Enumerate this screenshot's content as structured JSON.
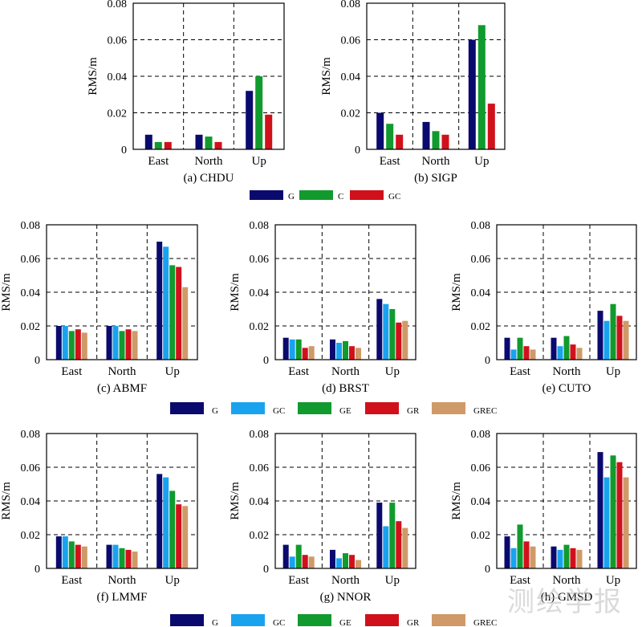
{
  "figure": {
    "watermark": "测绘学报",
    "legend_rows": [
      {
        "series": [
          {
            "name": "G",
            "color": "#0a0a6e"
          },
          {
            "name": "C",
            "color": "#119a2e"
          },
          {
            "name": "GC",
            "color": "#d0111b"
          }
        ]
      },
      {
        "series": [
          {
            "name": "G",
            "color": "#0a0a6e"
          },
          {
            "name": "GC",
            "color": "#19a3ef"
          },
          {
            "name": "GE",
            "color": "#119a2e"
          },
          {
            "name": "GR",
            "color": "#d0111b"
          },
          {
            "name": "GREC",
            "color": "#cf9a68"
          }
        ]
      },
      {
        "series": [
          {
            "name": "G",
            "color": "#0a0a6e"
          },
          {
            "name": "GC",
            "color": "#19a3ef"
          },
          {
            "name": "GE",
            "color": "#119a2e"
          },
          {
            "name": "GR",
            "color": "#d0111b"
          },
          {
            "name": "GREC",
            "color": "#cf9a68"
          }
        ]
      }
    ]
  },
  "chart_data": [
    {
      "type": "bar",
      "title": "(a) CHDU",
      "ylabel": "RMS/m",
      "xlabel": "",
      "categories": [
        "East",
        "North",
        "Up"
      ],
      "ylim": [
        0,
        0.08
      ],
      "yticks": [
        "0",
        "0.02",
        "0.04",
        "0.06",
        "0.08"
      ],
      "grid": true,
      "series": [
        {
          "name": "G",
          "color": "#0a0a6e",
          "values": [
            0.008,
            0.008,
            0.032
          ]
        },
        {
          "name": "C",
          "color": "#119a2e",
          "values": [
            0.004,
            0.007,
            0.04
          ]
        },
        {
          "name": "GC",
          "color": "#d0111b",
          "values": [
            0.004,
            0.004,
            0.019
          ]
        }
      ]
    },
    {
      "type": "bar",
      "title": "(b) SIGP",
      "ylabel": "RMS/m",
      "xlabel": "",
      "categories": [
        "East",
        "North",
        "Up"
      ],
      "ylim": [
        0,
        0.08
      ],
      "yticks": [
        "0",
        "0.02",
        "0.04",
        "0.06",
        "0.08"
      ],
      "grid": true,
      "series": [
        {
          "name": "G",
          "color": "#0a0a6e",
          "values": [
            0.02,
            0.015,
            0.06
          ]
        },
        {
          "name": "C",
          "color": "#119a2e",
          "values": [
            0.014,
            0.01,
            0.068
          ]
        },
        {
          "name": "GC",
          "color": "#d0111b",
          "values": [
            0.008,
            0.008,
            0.025
          ]
        }
      ]
    },
    {
      "type": "bar",
      "title": "(c) ABMF",
      "ylabel": "RMS/m",
      "xlabel": "",
      "categories": [
        "East",
        "North",
        "Up"
      ],
      "ylim": [
        0,
        0.08
      ],
      "yticks": [
        "0",
        "0.02",
        "0.04",
        "0.06",
        "0.08"
      ],
      "grid": true,
      "series": [
        {
          "name": "G",
          "color": "#0a0a6e",
          "values": [
            0.02,
            0.02,
            0.07
          ]
        },
        {
          "name": "GC",
          "color": "#19a3ef",
          "values": [
            0.02,
            0.02,
            0.067
          ]
        },
        {
          "name": "GE",
          "color": "#119a2e",
          "values": [
            0.017,
            0.017,
            0.056
          ]
        },
        {
          "name": "GR",
          "color": "#d0111b",
          "values": [
            0.018,
            0.018,
            0.055
          ]
        },
        {
          "name": "GREC",
          "color": "#cf9a68",
          "values": [
            0.016,
            0.017,
            0.043
          ]
        }
      ]
    },
    {
      "type": "bar",
      "title": "(d) BRST",
      "ylabel": "RMS/m",
      "xlabel": "",
      "categories": [
        "East",
        "North",
        "Up"
      ],
      "ylim": [
        0,
        0.08
      ],
      "yticks": [
        "0",
        "0.02",
        "0.04",
        "0.06",
        "0.08"
      ],
      "grid": true,
      "series": [
        {
          "name": "G",
          "color": "#0a0a6e",
          "values": [
            0.013,
            0.012,
            0.036
          ]
        },
        {
          "name": "GC",
          "color": "#19a3ef",
          "values": [
            0.012,
            0.01,
            0.033
          ]
        },
        {
          "name": "GE",
          "color": "#119a2e",
          "values": [
            0.012,
            0.011,
            0.03
          ]
        },
        {
          "name": "GR",
          "color": "#d0111b",
          "values": [
            0.007,
            0.008,
            0.022
          ]
        },
        {
          "name": "GREC",
          "color": "#cf9a68",
          "values": [
            0.008,
            0.007,
            0.023
          ]
        }
      ]
    },
    {
      "type": "bar",
      "title": "(e) CUTO",
      "ylabel": "RMS/m",
      "xlabel": "",
      "categories": [
        "East",
        "North",
        "Up"
      ],
      "ylim": [
        0,
        0.08
      ],
      "yticks": [
        "0",
        "0.02",
        "0.04",
        "0.06",
        "0.08"
      ],
      "grid": true,
      "series": [
        {
          "name": "G",
          "color": "#0a0a6e",
          "values": [
            0.013,
            0.013,
            0.029
          ]
        },
        {
          "name": "GC",
          "color": "#19a3ef",
          "values": [
            0.006,
            0.008,
            0.023
          ]
        },
        {
          "name": "GE",
          "color": "#119a2e",
          "values": [
            0.013,
            0.014,
            0.033
          ]
        },
        {
          "name": "GR",
          "color": "#d0111b",
          "values": [
            0.008,
            0.009,
            0.026
          ]
        },
        {
          "name": "GREC",
          "color": "#cf9a68",
          "values": [
            0.006,
            0.007,
            0.023
          ]
        }
      ]
    },
    {
      "type": "bar",
      "title": "(f) LMMF",
      "ylabel": "RMS/m",
      "xlabel": "",
      "categories": [
        "East",
        "North",
        "Up"
      ],
      "ylim": [
        0,
        0.08
      ],
      "yticks": [
        "0",
        "0.02",
        "0.04",
        "0.06",
        "0.08"
      ],
      "grid": true,
      "series": [
        {
          "name": "G",
          "color": "#0a0a6e",
          "values": [
            0.019,
            0.014,
            0.056
          ]
        },
        {
          "name": "GC",
          "color": "#19a3ef",
          "values": [
            0.019,
            0.014,
            0.054
          ]
        },
        {
          "name": "GE",
          "color": "#119a2e",
          "values": [
            0.016,
            0.012,
            0.046
          ]
        },
        {
          "name": "GR",
          "color": "#d0111b",
          "values": [
            0.014,
            0.011,
            0.038
          ]
        },
        {
          "name": "GREC",
          "color": "#cf9a68",
          "values": [
            0.013,
            0.01,
            0.037
          ]
        }
      ]
    },
    {
      "type": "bar",
      "title": "(g) NNOR",
      "ylabel": "RMS/m",
      "xlabel": "",
      "categories": [
        "East",
        "North",
        "Up"
      ],
      "ylim": [
        0,
        0.08
      ],
      "yticks": [
        "0",
        "0.02",
        "0.04",
        "0.06",
        "0.08"
      ],
      "grid": true,
      "series": [
        {
          "name": "G",
          "color": "#0a0a6e",
          "values": [
            0.014,
            0.011,
            0.039
          ]
        },
        {
          "name": "GC",
          "color": "#19a3ef",
          "values": [
            0.007,
            0.006,
            0.025
          ]
        },
        {
          "name": "GE",
          "color": "#119a2e",
          "values": [
            0.014,
            0.009,
            0.039
          ]
        },
        {
          "name": "GR",
          "color": "#d0111b",
          "values": [
            0.008,
            0.008,
            0.028
          ]
        },
        {
          "name": "GREC",
          "color": "#cf9a68",
          "values": [
            0.007,
            0.005,
            0.024
          ]
        }
      ]
    },
    {
      "type": "bar",
      "title": "(h) GMSD",
      "ylabel": "RMS/m",
      "xlabel": "",
      "categories": [
        "East",
        "North",
        "Up"
      ],
      "ylim": [
        0,
        0.08
      ],
      "yticks": [
        "0",
        "0.02",
        "0.04",
        "0.06",
        "0.08"
      ],
      "grid": true,
      "series": [
        {
          "name": "G",
          "color": "#0a0a6e",
          "values": [
            0.019,
            0.013,
            0.069
          ]
        },
        {
          "name": "GC",
          "color": "#19a3ef",
          "values": [
            0.012,
            0.011,
            0.054
          ]
        },
        {
          "name": "GE",
          "color": "#119a2e",
          "values": [
            0.026,
            0.014,
            0.067
          ]
        },
        {
          "name": "GR",
          "color": "#d0111b",
          "values": [
            0.016,
            0.012,
            0.063
          ]
        },
        {
          "name": "GREC",
          "color": "#cf9a68",
          "values": [
            0.013,
            0.011,
            0.054
          ]
        }
      ]
    }
  ]
}
